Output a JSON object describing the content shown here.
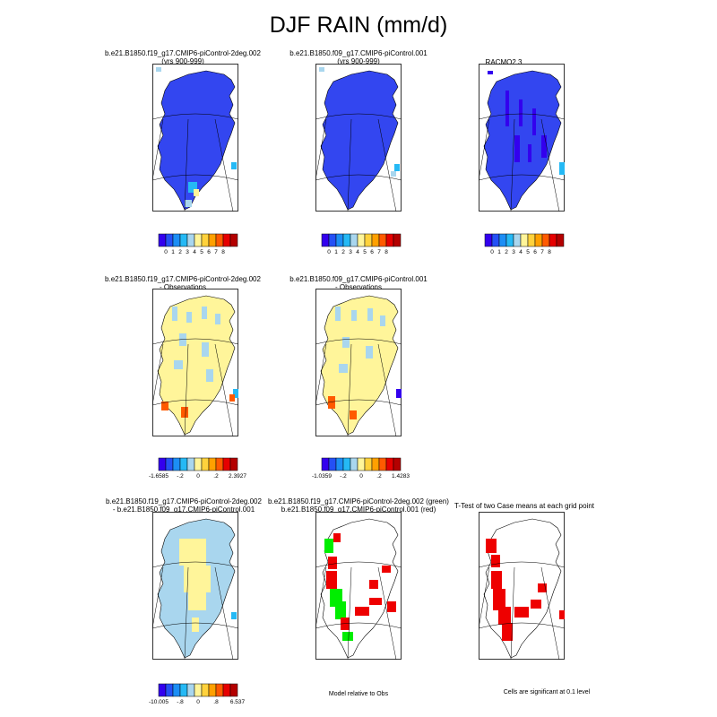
{
  "title": "DJF RAIN (mm/d)",
  "panels": [
    {
      "id": "p1",
      "title1": "b.e21.B1850.f19_g17.CMIP6-piControl-2deg.002",
      "title2": "(yrs 900-999)",
      "fill": "#3346f0"
    },
    {
      "id": "p2",
      "title1": "b.e21.B1850.f09_g17.CMIP6-piControl.001",
      "title2": "(yrs 900-999)",
      "fill": "#3346f0"
    },
    {
      "id": "p3",
      "title1": "RACMO2.3",
      "title2": "",
      "fill": "#3346f0"
    },
    {
      "id": "p4",
      "title1": "b.e21.B1850.f19_g17.CMIP6-piControl-2deg.002",
      "title2": "- Observations",
      "fill": "#fff59a"
    },
    {
      "id": "p5",
      "title1": "b.e21.B1850.f09_g17.CMIP6-piControl.001",
      "title2": "- Observations",
      "fill": "#fff59a"
    },
    {
      "id": "p7",
      "title1": "b.e21.B1850.f19_g17.CMIP6-piControl-2deg.002",
      "title2": "- b.e21.B1850.f09_g17.CMIP6-piControl.001",
      "fill": "#a9d6ee"
    },
    {
      "id": "p8",
      "title1": "b.e21.B1850.f19_g17.CMIP6-piControl-2deg.002 (green)",
      "title2": "b.e21.B1850.f09_g17.CMIP6-piControl.001 (red)",
      "fill": "none"
    },
    {
      "id": "p9",
      "title1": "T-Test of two Case means at each grid point",
      "title2": "",
      "fill": "none"
    }
  ],
  "colorbars": {
    "abs": {
      "colors": [
        "#3300ee",
        "#2450f5",
        "#1c8ef5",
        "#25b9f5",
        "#a9d6ee",
        "#fff59a",
        "#ffd23c",
        "#ffa000",
        "#ff5a00",
        "#e60000",
        "#b40000"
      ],
      "labels": [
        "0",
        "1",
        "2",
        "3",
        "4",
        "5",
        "6",
        "7",
        "8"
      ]
    },
    "diff1": {
      "colors": [
        "#3300ee",
        "#2450f5",
        "#1c8ef5",
        "#25b9f5",
        "#a9d6ee",
        "#fff59a",
        "#ffd23c",
        "#ffa000",
        "#ff5a00",
        "#e60000",
        "#b40000"
      ],
      "labels": [
        "-1.6585",
        "-.2",
        "0",
        ".2",
        "2.3927"
      ]
    },
    "diff2": {
      "colors": [
        "#3300ee",
        "#2450f5",
        "#1c8ef5",
        "#25b9f5",
        "#a9d6ee",
        "#fff59a",
        "#ffd23c",
        "#ffa000",
        "#ff5a00",
        "#e60000",
        "#b40000"
      ],
      "labels": [
        "-1.0359",
        "-.2",
        "0",
        ".2",
        "1.4283"
      ]
    },
    "diff3": {
      "colors": [
        "#3300ee",
        "#2450f5",
        "#1c8ef5",
        "#25b9f5",
        "#a9d6ee",
        "#fff59a",
        "#ffd23c",
        "#ffa000",
        "#ff5a00",
        "#e60000",
        "#b40000"
      ],
      "labels": [
        "-10.005",
        "-.8",
        "0",
        ".8",
        "6.537"
      ]
    }
  },
  "notes": {
    "model_relative": "Model relative to Obs",
    "significance": "Cells are significant at 0.1 level"
  },
  "colors": {
    "green": "#00ee00",
    "red": "#ee0000",
    "patch_light": "#a9d6ee",
    "patch_yellow": "#fff59a",
    "patch_blue": "#3300ee",
    "patch_sky": "#25b9f5",
    "patch_orange": "#ff5a00"
  }
}
